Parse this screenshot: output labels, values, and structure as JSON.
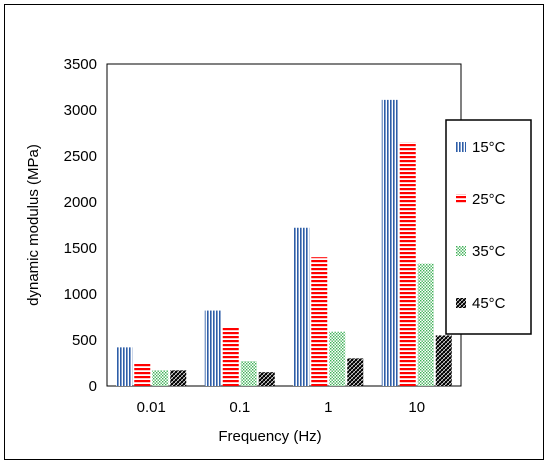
{
  "chart_data": {
    "type": "bar",
    "xlabel": "Frequency (Hz)",
    "ylabel": "dynamic modulus  (MPa)",
    "categories": [
      "0.01",
      "0.1",
      "1",
      "10"
    ],
    "ylim": [
      0,
      3500
    ],
    "yticks": [
      "0",
      "500",
      "1000",
      "1500",
      "2000",
      "2500",
      "3000",
      "3500"
    ],
    "grid": false,
    "legend_position": "right",
    "series": [
      {
        "name": "15°C",
        "values": [
          420,
          820,
          1720,
          3110
        ],
        "color": "#2e5ea8",
        "pattern": "vertical-lines"
      },
      {
        "name": "25°C",
        "values": [
          240,
          640,
          1400,
          2650
        ],
        "color": "#ff0000",
        "pattern": "horizontal-lines"
      },
      {
        "name": "35°C",
        "values": [
          170,
          270,
          590,
          1330
        ],
        "color": "#3cb054",
        "pattern": "dots"
      },
      {
        "name": "45°C",
        "values": [
          170,
          150,
          300,
          550
        ],
        "color": "#000000",
        "pattern": "diagonal-checker"
      }
    ]
  }
}
